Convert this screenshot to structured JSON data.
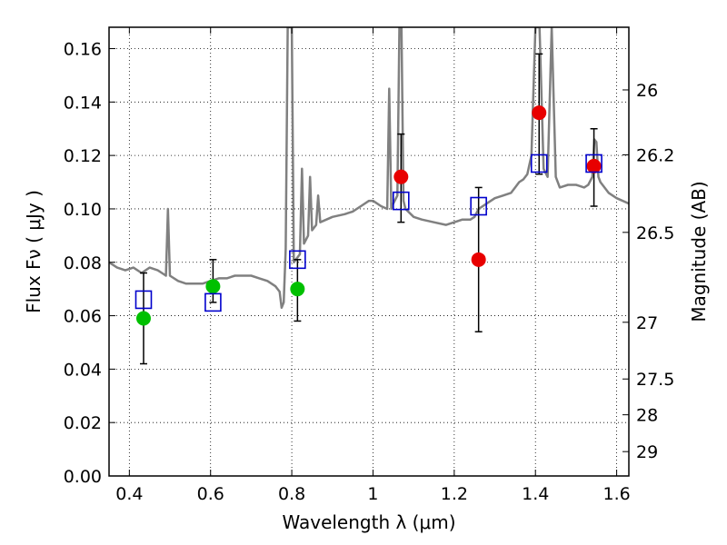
{
  "chart_data": {
    "type": "scatter",
    "xlabel": "Wavelength  λ (μm)",
    "ylabel": "Flux  Fν  ( μJy )",
    "y2label": "Magnitude (AB)",
    "xlim": [
      0.35,
      1.63
    ],
    "ylim": [
      0.0,
      0.168
    ],
    "grid": true,
    "x_ticks": [
      0.4,
      0.6,
      0.8,
      1.0,
      1.2,
      1.4,
      1.6
    ],
    "x_tick_labels": [
      "0.4",
      "0.6",
      "0.8",
      "1",
      "1.2",
      "1.4",
      "1.6"
    ],
    "y_ticks": [
      0.0,
      0.02,
      0.04,
      0.06,
      0.08,
      0.1,
      0.12,
      0.14,
      0.16
    ],
    "y_tick_labels": [
      "0.00",
      "0.02",
      "0.04",
      "0.06",
      "0.08",
      "0.10",
      "0.12",
      "0.14",
      "0.16"
    ],
    "y2_ticks": [
      {
        "label": "26",
        "mag": 26.0
      },
      {
        "label": "26.2",
        "mag": 26.2
      },
      {
        "label": "26.5",
        "mag": 26.5
      },
      {
        "label": "27",
        "mag": 27.0
      },
      {
        "label": "27.5",
        "mag": 27.5
      },
      {
        "label": "28",
        "mag": 28.0
      },
      {
        "label": "29",
        "mag": 29.0
      }
    ],
    "colors": {
      "spectrum": "#808080",
      "green_points": "#00c000",
      "red_points": "#e80000",
      "model_boxes": "#0000cc",
      "errorbars": "#000000"
    },
    "series": [
      {
        "marker": "circle",
        "color": "#00c000",
        "points": [
          {
            "x": 0.435,
            "y": 0.059,
            "yerr_low": 0.042,
            "yerr_high": 0.076
          },
          {
            "x": 0.606,
            "y": 0.071,
            "yerr_low": 0.065,
            "yerr_high": 0.081
          },
          {
            "x": 0.814,
            "y": 0.07,
            "yerr_low": 0.058,
            "yerr_high": 0.081
          }
        ]
      },
      {
        "marker": "circle",
        "color": "#e80000",
        "points": [
          {
            "x": 1.069,
            "y": 0.112,
            "yerr_low": 0.095,
            "yerr_high": 0.128
          },
          {
            "x": 1.26,
            "y": 0.081,
            "yerr_low": 0.054,
            "yerr_high": 0.108
          },
          {
            "x": 1.409,
            "y": 0.136,
            "yerr_low": 0.113,
            "yerr_high": 0.158
          },
          {
            "x": 1.544,
            "y": 0.116,
            "yerr_low": 0.101,
            "yerr_high": 0.13
          }
        ]
      },
      {
        "marker": "open-square",
        "color": "#0000cc",
        "points": [
          {
            "x": 0.435,
            "y": 0.066
          },
          {
            "x": 0.606,
            "y": 0.065
          },
          {
            "x": 0.814,
            "y": 0.081
          },
          {
            "x": 1.069,
            "y": 0.103
          },
          {
            "x": 1.26,
            "y": 0.101
          },
          {
            "x": 1.409,
            "y": 0.117
          },
          {
            "x": 1.544,
            "y": 0.117
          }
        ]
      }
    ],
    "spectrum": [
      [
        0.35,
        0.08
      ],
      [
        0.37,
        0.078
      ],
      [
        0.39,
        0.077
      ],
      [
        0.41,
        0.078
      ],
      [
        0.43,
        0.076
      ],
      [
        0.45,
        0.078
      ],
      [
        0.47,
        0.077
      ],
      [
        0.48,
        0.076
      ],
      [
        0.49,
        0.075
      ],
      [
        0.495,
        0.1
      ],
      [
        0.5,
        0.075
      ],
      [
        0.52,
        0.073
      ],
      [
        0.54,
        0.072
      ],
      [
        0.56,
        0.072
      ],
      [
        0.58,
        0.072
      ],
      [
        0.6,
        0.073
      ],
      [
        0.62,
        0.074
      ],
      [
        0.64,
        0.074
      ],
      [
        0.66,
        0.075
      ],
      [
        0.68,
        0.075
      ],
      [
        0.7,
        0.075
      ],
      [
        0.72,
        0.074
      ],
      [
        0.74,
        0.073
      ],
      [
        0.76,
        0.071
      ],
      [
        0.77,
        0.069
      ],
      [
        0.775,
        0.063
      ],
      [
        0.78,
        0.065
      ],
      [
        0.785,
        0.085
      ],
      [
        0.79,
        0.168
      ],
      [
        0.8,
        0.168
      ],
      [
        0.805,
        0.08
      ],
      [
        0.81,
        0.081
      ],
      [
        0.82,
        0.083
      ],
      [
        0.825,
        0.115
      ],
      [
        0.83,
        0.087
      ],
      [
        0.84,
        0.09
      ],
      [
        0.845,
        0.112
      ],
      [
        0.85,
        0.092
      ],
      [
        0.86,
        0.094
      ],
      [
        0.865,
        0.105
      ],
      [
        0.87,
        0.095
      ],
      [
        0.9,
        0.097
      ],
      [
        0.93,
        0.098
      ],
      [
        0.95,
        0.099
      ],
      [
        0.97,
        0.101
      ],
      [
        0.99,
        0.103
      ],
      [
        1.0,
        0.103
      ],
      [
        1.02,
        0.101
      ],
      [
        1.035,
        0.1
      ],
      [
        1.04,
        0.145
      ],
      [
        1.045,
        0.1
      ],
      [
        1.05,
        0.102
      ],
      [
        1.06,
        0.105
      ],
      [
        1.065,
        0.168
      ],
      [
        1.07,
        0.168
      ],
      [
        1.075,
        0.103
      ],
      [
        1.08,
        0.1
      ],
      [
        1.1,
        0.097
      ],
      [
        1.12,
        0.096
      ],
      [
        1.15,
        0.095
      ],
      [
        1.18,
        0.094
      ],
      [
        1.2,
        0.095
      ],
      [
        1.22,
        0.096
      ],
      [
        1.24,
        0.096
      ],
      [
        1.25,
        0.097
      ],
      [
        1.26,
        0.1
      ],
      [
        1.28,
        0.102
      ],
      [
        1.3,
        0.104
      ],
      [
        1.32,
        0.105
      ],
      [
        1.34,
        0.106
      ],
      [
        1.35,
        0.108
      ],
      [
        1.36,
        0.11
      ],
      [
        1.37,
        0.111
      ],
      [
        1.38,
        0.113
      ],
      [
        1.39,
        0.12
      ],
      [
        1.4,
        0.168
      ],
      [
        1.41,
        0.168
      ],
      [
        1.42,
        0.115
      ],
      [
        1.43,
        0.112
      ],
      [
        1.44,
        0.168
      ],
      [
        1.45,
        0.112
      ],
      [
        1.46,
        0.108
      ],
      [
        1.48,
        0.109
      ],
      [
        1.5,
        0.109
      ],
      [
        1.52,
        0.108
      ],
      [
        1.53,
        0.109
      ],
      [
        1.54,
        0.112
      ],
      [
        1.545,
        0.126
      ],
      [
        1.55,
        0.125
      ],
      [
        1.555,
        0.112
      ],
      [
        1.56,
        0.11
      ],
      [
        1.58,
        0.106
      ],
      [
        1.6,
        0.104
      ],
      [
        1.63,
        0.102
      ]
    ]
  }
}
